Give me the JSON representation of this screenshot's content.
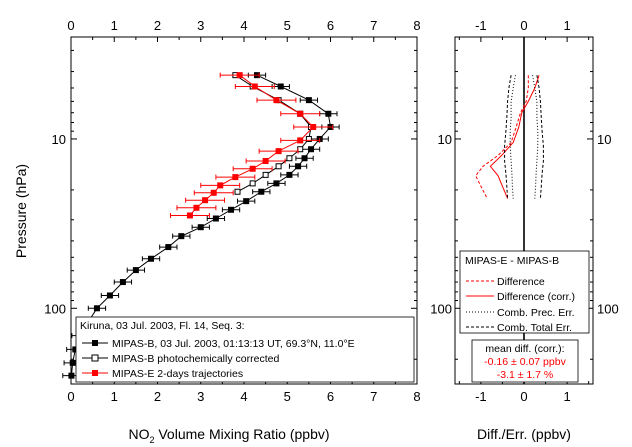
{
  "chart_data": [
    {
      "type": "line",
      "xlabel": "NO",
      "xlabel_sub": "2",
      "xlabel_rest": " Volume Mixing Ratio (ppbv)",
      "ylabel": "Pressure (hPa)",
      "xlim": [
        0,
        8
      ],
      "ylim": [
        280,
        2.5
      ],
      "y_scale": "log",
      "x_ticks": [
        "0",
        "1",
        "2",
        "3",
        "4",
        "5",
        "6",
        "7",
        "8"
      ],
      "y_tick_labels": [
        {
          "value": 10,
          "label": "10"
        },
        {
          "value": 100,
          "label": "100"
        }
      ],
      "legend_title": "Kiruna, 03 Jul. 2003, Fl. 14, Seq. 3:",
      "legend_position": "bottom-right",
      "series": [
        {
          "name": "MIPAS-B, 03 Jul. 2003, 01:13:13 UT, 69.3°N, 11.0°E",
          "color": "#000000",
          "marker": "filled-square",
          "x": [
            4.3,
            4.85,
            5.5,
            5.95,
            6.0,
            5.75,
            5.55,
            5.4,
            5.25,
            5.05,
            4.75,
            4.4,
            4.05,
            3.7,
            3.35,
            3.0,
            2.55,
            2.25,
            1.85,
            1.5,
            1.2,
            0.9,
            0.6,
            0.4,
            0.22,
            0.1,
            0.04,
            0.01
          ],
          "y": [
            4.2,
            4.9,
            5.9,
            7.1,
            8.5,
            10.0,
            11.5,
            13.0,
            14.5,
            16.3,
            18.3,
            20.5,
            23.3,
            26.2,
            29.5,
            33.2,
            37.5,
            43.5,
            51.0,
            59.5,
            70.0,
            84.0,
            100.0,
            120.0,
            145.0,
            175.0,
            210.0,
            250.0
          ],
          "xerr": 0.2
        },
        {
          "name": "MIPAS-B photochemically corrected",
          "color": "#000000",
          "marker": "open-square",
          "x": [
            3.8,
            4.2,
            4.8,
            5.3,
            5.55,
            5.5,
            5.3,
            5.05,
            4.8,
            4.5,
            4.2,
            3.85
          ],
          "y": [
            4.2,
            4.9,
            5.9,
            7.1,
            8.5,
            10.0,
            11.5,
            13.0,
            14.5,
            16.3,
            18.3,
            20.5
          ]
        },
        {
          "name": "MIPAS-E 2-days trajectories",
          "color": "#ff0000",
          "marker": "filled-square",
          "x": [
            3.9,
            4.25,
            4.75,
            5.3,
            5.6,
            5.3,
            4.8,
            4.5,
            4.2,
            3.8,
            3.45,
            3.3,
            3.1,
            2.9,
            2.75
          ],
          "y": [
            4.2,
            4.9,
            5.9,
            7.1,
            8.5,
            10.2,
            11.8,
            13.5,
            15.0,
            16.8,
            18.8,
            20.8,
            23.0,
            25.5,
            28.3
          ],
          "xerr": 0.45
        }
      ]
    },
    {
      "type": "line",
      "xlabel": "Diff./Err. (ppbv)",
      "xlim": [
        -1.6,
        1.6
      ],
      "ylim": [
        280,
        2.5
      ],
      "y_scale": "log",
      "x_ticks": [
        "-1",
        "0",
        "1"
      ],
      "y_tick_labels": [
        {
          "value": 10,
          "label": "10"
        },
        {
          "value": 100,
          "label": "100"
        }
      ],
      "legend_title": "MIPAS-E - MIPAS-B",
      "legend_position": "bottom",
      "series": [
        {
          "name": "Difference",
          "color": "#ff0000",
          "style": "dashed",
          "x": [
            0.1,
            0.1,
            0.05,
            -0.08,
            -0.18,
            -0.3,
            -0.6,
            -0.95,
            -1.12,
            -1.0,
            -0.85
          ],
          "y": [
            4.2,
            5.0,
            6.0,
            7.0,
            8.5,
            10.5,
            12.5,
            14.5,
            16.5,
            19.0,
            22.5
          ]
        },
        {
          "name": "Difference (corr.)",
          "color": "#ff0000",
          "style": "solid",
          "x": [
            0.35,
            0.25,
            0.1,
            -0.05,
            -0.12,
            -0.25,
            -0.52,
            -0.78,
            -0.6,
            -0.5,
            -0.38
          ],
          "y": [
            4.2,
            5.0,
            6.0,
            7.0,
            8.5,
            10.5,
            12.5,
            14.5,
            16.5,
            19.0,
            22.5
          ]
        },
        {
          "name": "Comb. Prec. Err.",
          "color": "#000000",
          "style": "dotted",
          "x": [
            0.2,
            0.25,
            0.3,
            0.3,
            0.32,
            0.32,
            0.3,
            0.28,
            0.27,
            0.25
          ],
          "y": [
            4.2,
            5.0,
            6.0,
            7.5,
            9.0,
            11.0,
            13.5,
            16.0,
            19.0,
            22.5
          ]
        },
        {
          "name": "Comb. Total Err.",
          "color": "#000000",
          "style": "dashed",
          "x": [
            0.3,
            0.35,
            0.38,
            0.4,
            0.42,
            0.45,
            0.45,
            0.42,
            0.4,
            0.38
          ],
          "y": [
            4.2,
            5.0,
            6.0,
            7.5,
            9.0,
            11.0,
            13.5,
            16.0,
            19.0,
            22.5
          ]
        }
      ],
      "annotation_title": "mean diff. (corr.):",
      "annotation_lines": [
        "-0.16 ± 0.07 ppbv",
        "-3.1 ± 1.7 %"
      ]
    }
  ]
}
